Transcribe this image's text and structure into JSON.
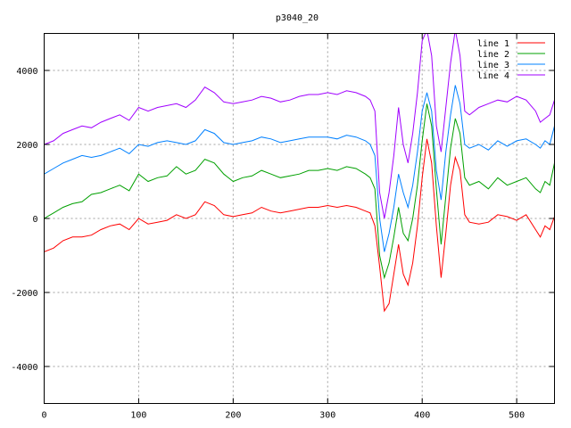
{
  "chart_data": {
    "type": "line",
    "title": "p3040_20",
    "xlabel": "",
    "ylabel": "",
    "xlim": [
      0,
      540
    ],
    "ylim": [
      -5000,
      5000
    ],
    "xticks": [
      0,
      100,
      200,
      300,
      400,
      500
    ],
    "yticks": [
      -4000,
      -2000,
      0,
      2000,
      4000
    ],
    "grid": true,
    "legend_position": "top-right",
    "x": [
      0,
      10,
      20,
      30,
      40,
      50,
      60,
      70,
      80,
      90,
      100,
      110,
      120,
      130,
      140,
      150,
      160,
      170,
      180,
      190,
      200,
      210,
      220,
      230,
      240,
      250,
      260,
      270,
      280,
      290,
      300,
      310,
      320,
      330,
      340,
      345,
      350,
      355,
      360,
      365,
      370,
      375,
      380,
      385,
      390,
      395,
      400,
      405,
      410,
      415,
      420,
      425,
      430,
      435,
      440,
      445,
      450,
      460,
      470,
      480,
      490,
      500,
      510,
      520,
      525,
      530,
      535,
      540
    ],
    "series": [
      {
        "name": "line 1",
        "color": "#ff0000",
        "values": [
          -900,
          -800,
          -600,
          -500,
          -500,
          -450,
          -300,
          -200,
          -150,
          -300,
          0,
          -150,
          -100,
          -50,
          100,
          0,
          100,
          450,
          350,
          100,
          50,
          100,
          150,
          300,
          200,
          150,
          200,
          250,
          300,
          300,
          350,
          300,
          350,
          300,
          200,
          150,
          -200,
          -1300,
          -2500,
          -2300,
          -1500,
          -700,
          -1500,
          -1800,
          -1200,
          -200,
          1100,
          2150,
          1500,
          -200,
          -1600,
          -400,
          900,
          1650,
          1300,
          100,
          -100,
          -150,
          -100,
          100,
          50,
          -50,
          100,
          -300,
          -500,
          -200,
          -300,
          50
        ]
      },
      {
        "name": "line 2",
        "color": "#00a000",
        "values": [
          0,
          150,
          300,
          400,
          450,
          650,
          700,
          800,
          900,
          750,
          1200,
          1000,
          1100,
          1150,
          1400,
          1200,
          1300,
          1600,
          1500,
          1200,
          1000,
          1100,
          1150,
          1300,
          1200,
          1100,
          1150,
          1200,
          1300,
          1300,
          1350,
          1300,
          1400,
          1350,
          1200,
          1100,
          800,
          -1000,
          -1600,
          -1200,
          -500,
          300,
          -400,
          -600,
          0,
          900,
          2100,
          3100,
          2500,
          800,
          -700,
          600,
          1900,
          2700,
          2300,
          1100,
          900,
          1000,
          800,
          1100,
          900,
          1000,
          1100,
          800,
          700,
          1000,
          900,
          1500
        ]
      },
      {
        "name": "line 3",
        "color": "#0080ff",
        "values": [
          1200,
          1350,
          1500,
          1600,
          1700,
          1650,
          1700,
          1800,
          1900,
          1750,
          2000,
          1950,
          2050,
          2100,
          2050,
          2000,
          2100,
          2400,
          2300,
          2050,
          2000,
          2050,
          2100,
          2200,
          2150,
          2050,
          2100,
          2150,
          2200,
          2200,
          2200,
          2150,
          2250,
          2200,
          2100,
          2000,
          1700,
          0,
          -900,
          -400,
          300,
          1200,
          700,
          300,
          900,
          1800,
          2900,
          3400,
          2900,
          1300,
          500,
          1800,
          2800,
          3600,
          3100,
          2000,
          1900,
          2000,
          1850,
          2100,
          1950,
          2100,
          2150,
          2000,
          1900,
          2100,
          2000,
          2500
        ]
      },
      {
        "name": "line 4",
        "color": "#a000ff",
        "values": [
          2000,
          2100,
          2300,
          2400,
          2500,
          2450,
          2600,
          2700,
          2800,
          2650,
          3000,
          2900,
          3000,
          3050,
          3100,
          3000,
          3200,
          3550,
          3400,
          3150,
          3100,
          3150,
          3200,
          3300,
          3250,
          3150,
          3200,
          3300,
          3350,
          3350,
          3400,
          3350,
          3450,
          3400,
          3300,
          3200,
          2900,
          700,
          0,
          700,
          1700,
          3000,
          2000,
          1500,
          2300,
          3400,
          4800,
          5100,
          4400,
          2500,
          1800,
          3000,
          4200,
          5100,
          4400,
          2900,
          2800,
          3000,
          3100,
          3200,
          3150,
          3300,
          3200,
          2900,
          2600,
          2700,
          2800,
          3200
        ]
      }
    ]
  }
}
